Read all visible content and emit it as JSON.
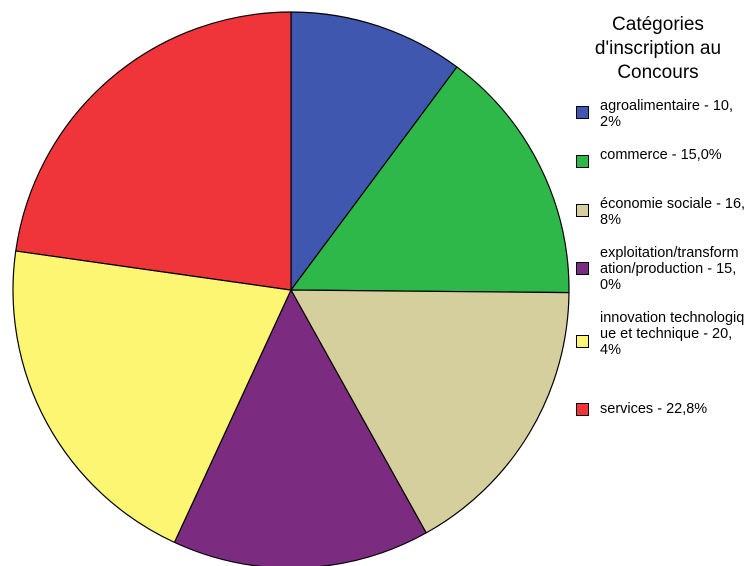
{
  "chart_data": {
    "type": "pie",
    "title": "",
    "legend_title": "Catégories d'inscription au Concours",
    "legend_position": "right",
    "categories": [
      "agroalimentaire",
      "commerce",
      "économie sociale",
      "exploitation/transformation/production",
      "innovation technologique et technique",
      "services"
    ],
    "values": [
      10.2,
      15.0,
      16.8,
      15.0,
      20.4,
      22.8
    ],
    "labels": [
      "agroalimentaire - 10,2%",
      "commerce - 15,0%",
      "économie sociale - 16,8%",
      "exploitation/transformation/production - 15,0%",
      "innovation technologique et technique - 20,4%",
      "services - 22,8%"
    ],
    "colors": [
      "#3f57ae",
      "#2fb84a",
      "#d4cf9c",
      "#7c2c80",
      "#fcf672",
      "#f0353a"
    ],
    "start_angle_deg": 0,
    "direction": "clockwise"
  }
}
